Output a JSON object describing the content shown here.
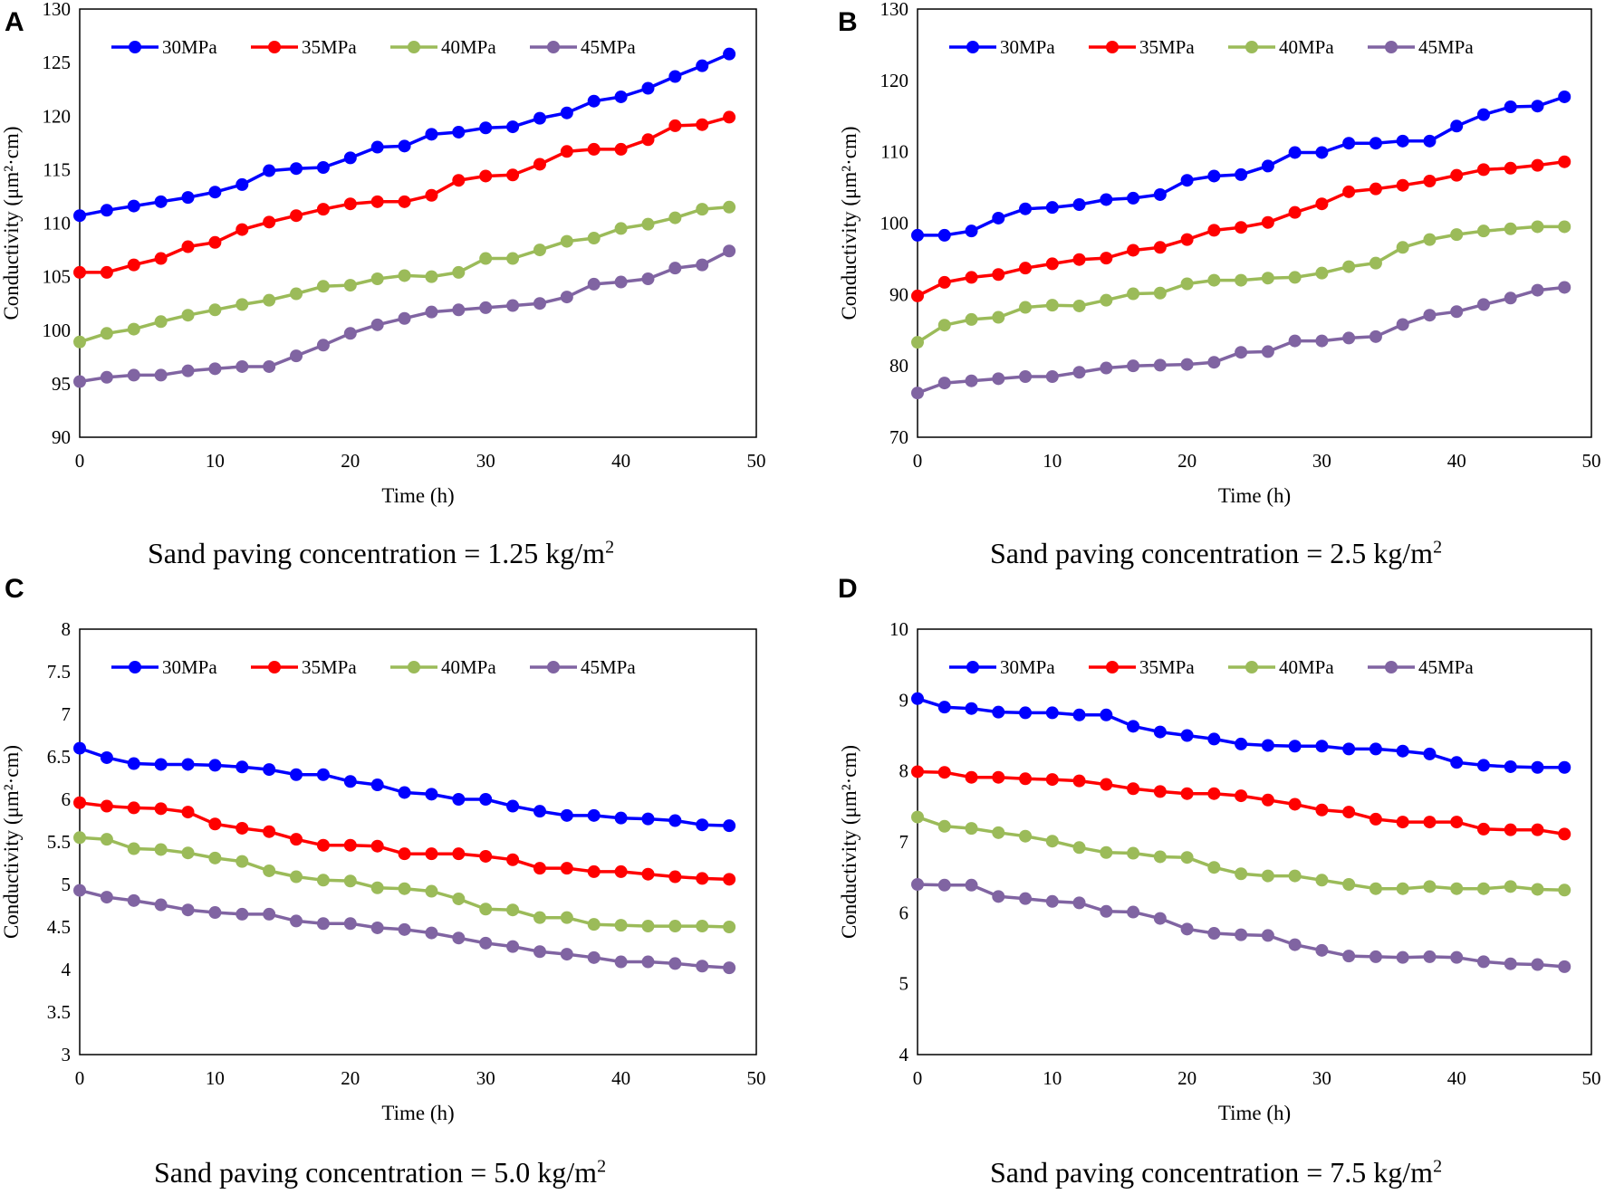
{
  "figure": {
    "panels": [
      {
        "letter": "A",
        "caption": "Sand paving concentration = 1.25 kg/m",
        "caption_sup": "2"
      },
      {
        "letter": "B",
        "caption": "Sand paving concentration = 2.5 kg/m",
        "caption_sup": "2"
      },
      {
        "letter": "C",
        "caption": "Sand paving concentration = 5.0 kg/m",
        "caption_sup": "2"
      },
      {
        "letter": "D",
        "caption": "Sand paving concentration = 7.5 kg/m",
        "caption_sup": "2"
      }
    ]
  },
  "chart_data": [
    {
      "type": "line",
      "panel": "A",
      "title": "",
      "xlabel": "Time (h)",
      "ylabel": "Conductivity (μm²·cm)",
      "xlim": [
        0,
        50
      ],
      "ylim": [
        90,
        130
      ],
      "xticks": [
        0,
        10,
        20,
        30,
        40,
        50
      ],
      "yticks": [
        90,
        95,
        100,
        105,
        110,
        115,
        120,
        125,
        130
      ],
      "grid": false,
      "legend": "top-left",
      "x": [
        0,
        2,
        4,
        6,
        8,
        10,
        12,
        14,
        16,
        18,
        20,
        22,
        24,
        26,
        28,
        30,
        32,
        34,
        36,
        38,
        40,
        42,
        44,
        46,
        48
      ],
      "series": [
        {
          "name": "30MPa",
          "color": "#0000FF",
          "values": [
            110.7,
            111.2,
            111.6,
            112.0,
            112.4,
            112.9,
            113.6,
            114.9,
            115.1,
            115.2,
            116.1,
            117.1,
            117.2,
            118.3,
            118.5,
            118.9,
            119.0,
            119.8,
            120.3,
            121.4,
            121.8,
            122.6,
            123.7,
            124.7,
            125.8
          ]
        },
        {
          "name": "35MPa",
          "color": "#FF0000",
          "values": [
            105.4,
            105.4,
            106.1,
            106.7,
            107.8,
            108.2,
            109.4,
            110.1,
            110.7,
            111.3,
            111.8,
            112.0,
            112.0,
            112.6,
            114.0,
            114.4,
            114.5,
            115.5,
            116.7,
            116.9,
            116.9,
            117.8,
            119.1,
            119.2,
            119.9
          ]
        },
        {
          "name": "40MPa",
          "color": "#9BBB59",
          "values": [
            98.9,
            99.7,
            100.1,
            100.8,
            101.4,
            101.9,
            102.4,
            102.8,
            103.4,
            104.1,
            104.2,
            104.8,
            105.1,
            105.0,
            105.4,
            106.7,
            106.7,
            107.5,
            108.3,
            108.6,
            109.5,
            109.9,
            110.5,
            111.3,
            111.5
          ]
        },
        {
          "name": "45MPa",
          "color": "#8064A2",
          "values": [
            95.2,
            95.6,
            95.8,
            95.8,
            96.2,
            96.4,
            96.6,
            96.6,
            97.6,
            98.6,
            99.7,
            100.5,
            101.1,
            101.7,
            101.9,
            102.1,
            102.3,
            102.5,
            103.1,
            104.3,
            104.5,
            104.8,
            105.8,
            106.1,
            107.4
          ]
        }
      ]
    },
    {
      "type": "line",
      "panel": "B",
      "title": "",
      "xlabel": "Time (h)",
      "ylabel": "Conductivity (μm²·cm)",
      "xlim": [
        0,
        50
      ],
      "ylim": [
        70,
        130
      ],
      "xticks": [
        0,
        10,
        20,
        30,
        40,
        50
      ],
      "yticks": [
        70,
        80,
        90,
        100,
        110,
        120,
        130
      ],
      "grid": false,
      "legend": "top-left",
      "x": [
        0,
        2,
        4,
        6,
        8,
        10,
        12,
        14,
        16,
        18,
        20,
        22,
        24,
        26,
        28,
        30,
        32,
        34,
        36,
        38,
        40,
        42,
        44,
        46,
        48
      ],
      "series": [
        {
          "name": "30MPa",
          "color": "#0000FF",
          "values": [
            98.3,
            98.3,
            98.9,
            100.7,
            102.0,
            102.2,
            102.6,
            103.3,
            103.5,
            104.0,
            106.0,
            106.6,
            106.8,
            108.0,
            109.9,
            109.9,
            111.2,
            111.2,
            111.5,
            111.5,
            113.6,
            115.2,
            116.3,
            116.4,
            117.7
          ]
        },
        {
          "name": "35MPa",
          "color": "#FF0000",
          "values": [
            89.8,
            91.7,
            92.4,
            92.8,
            93.7,
            94.3,
            94.9,
            95.1,
            96.2,
            96.6,
            97.7,
            99.0,
            99.4,
            100.1,
            101.5,
            102.7,
            104.4,
            104.8,
            105.3,
            105.9,
            106.7,
            107.5,
            107.7,
            108.1,
            108.6
          ]
        },
        {
          "name": "40MPa",
          "color": "#9BBB59",
          "values": [
            83.3,
            85.7,
            86.5,
            86.8,
            88.2,
            88.5,
            88.4,
            89.2,
            90.1,
            90.2,
            91.5,
            92.0,
            92.0,
            92.3,
            92.4,
            93.0,
            93.9,
            94.4,
            96.6,
            97.7,
            98.4,
            98.9,
            99.2,
            99.5,
            99.5
          ]
        },
        {
          "name": "45MPa",
          "color": "#8064A2",
          "values": [
            76.2,
            77.6,
            77.9,
            78.2,
            78.5,
            78.5,
            79.1,
            79.7,
            80.0,
            80.1,
            80.2,
            80.5,
            81.9,
            82.0,
            83.5,
            83.5,
            83.9,
            84.1,
            85.8,
            87.1,
            87.6,
            88.6,
            89.5,
            90.6,
            91.0
          ]
        }
      ]
    },
    {
      "type": "line",
      "panel": "C",
      "title": "",
      "xlabel": "Time (h)",
      "ylabel": "Conductivity (μm²·cm)",
      "xlim": [
        0,
        50
      ],
      "ylim": [
        3,
        8
      ],
      "xticks": [
        0,
        10,
        20,
        30,
        40,
        50
      ],
      "yticks": [
        3,
        3.5,
        4,
        4.5,
        5,
        5.5,
        6,
        6.5,
        7,
        7.5,
        8
      ],
      "grid": false,
      "legend": "top-left",
      "x": [
        0,
        2,
        4,
        6,
        8,
        10,
        12,
        14,
        16,
        18,
        20,
        22,
        24,
        26,
        28,
        30,
        32,
        34,
        36,
        38,
        40,
        42,
        44,
        46,
        48
      ],
      "series": [
        {
          "name": "30MPa",
          "color": "#0000FF",
          "values": [
            6.6,
            6.49,
            6.42,
            6.41,
            6.41,
            6.4,
            6.38,
            6.35,
            6.29,
            6.29,
            6.21,
            6.17,
            6.08,
            6.06,
            6.0,
            6.0,
            5.92,
            5.86,
            5.81,
            5.81,
            5.78,
            5.77,
            5.75,
            5.7,
            5.69
          ]
        },
        {
          "name": "35MPa",
          "color": "#FF0000",
          "values": [
            5.96,
            5.92,
            5.9,
            5.89,
            5.85,
            5.71,
            5.66,
            5.62,
            5.53,
            5.46,
            5.46,
            5.45,
            5.36,
            5.36,
            5.36,
            5.33,
            5.29,
            5.19,
            5.19,
            5.15,
            5.15,
            5.12,
            5.09,
            5.07,
            5.06
          ]
        },
        {
          "name": "40MPa",
          "color": "#9BBB59",
          "values": [
            5.55,
            5.53,
            5.42,
            5.41,
            5.37,
            5.31,
            5.27,
            5.16,
            5.09,
            5.05,
            5.04,
            4.96,
            4.95,
            4.92,
            4.83,
            4.71,
            4.7,
            4.61,
            4.61,
            4.53,
            4.52,
            4.51,
            4.51,
            4.51,
            4.5
          ]
        },
        {
          "name": "45MPa",
          "color": "#8064A2",
          "values": [
            4.93,
            4.85,
            4.81,
            4.76,
            4.7,
            4.67,
            4.65,
            4.65,
            4.57,
            4.54,
            4.54,
            4.49,
            4.47,
            4.43,
            4.37,
            4.31,
            4.27,
            4.21,
            4.18,
            4.14,
            4.09,
            4.09,
            4.07,
            4.04,
            4.02
          ]
        }
      ]
    },
    {
      "type": "line",
      "panel": "D",
      "title": "",
      "xlabel": "Time (h)",
      "ylabel": "Conductivity (μm²·cm)",
      "xlim": [
        0,
        50
      ],
      "ylim": [
        4,
        10
      ],
      "xticks": [
        0,
        10,
        20,
        30,
        40,
        50
      ],
      "yticks": [
        4,
        5,
        6,
        7,
        8,
        9,
        10
      ],
      "grid": false,
      "legend": "top-left",
      "x": [
        0,
        2,
        4,
        6,
        8,
        10,
        12,
        14,
        16,
        18,
        20,
        22,
        24,
        26,
        28,
        30,
        32,
        34,
        36,
        38,
        40,
        42,
        44,
        46,
        48
      ],
      "series": [
        {
          "name": "30MPa",
          "color": "#0000FF",
          "values": [
            9.02,
            8.9,
            8.88,
            8.83,
            8.82,
            8.82,
            8.79,
            8.79,
            8.63,
            8.55,
            8.5,
            8.45,
            8.38,
            8.36,
            8.35,
            8.35,
            8.31,
            8.31,
            8.28,
            8.24,
            8.12,
            8.08,
            8.06,
            8.05,
            8.05
          ]
        },
        {
          "name": "35MPa",
          "color": "#FF0000",
          "values": [
            7.99,
            7.98,
            7.91,
            7.91,
            7.89,
            7.88,
            7.86,
            7.81,
            7.75,
            7.71,
            7.68,
            7.68,
            7.65,
            7.59,
            7.53,
            7.45,
            7.42,
            7.32,
            7.28,
            7.28,
            7.28,
            7.18,
            7.17,
            7.17,
            7.11
          ]
        },
        {
          "name": "40MPa",
          "color": "#9BBB59",
          "values": [
            7.35,
            7.22,
            7.19,
            7.13,
            7.08,
            7.01,
            6.92,
            6.85,
            6.84,
            6.79,
            6.78,
            6.64,
            6.55,
            6.52,
            6.52,
            6.46,
            6.4,
            6.34,
            6.34,
            6.37,
            6.34,
            6.34,
            6.37,
            6.33,
            6.32
          ]
        },
        {
          "name": "45MPa",
          "color": "#8064A2",
          "values": [
            6.4,
            6.39,
            6.39,
            6.23,
            6.2,
            6.16,
            6.14,
            6.02,
            6.01,
            5.92,
            5.77,
            5.71,
            5.69,
            5.68,
            5.55,
            5.47,
            5.39,
            5.38,
            5.37,
            5.38,
            5.37,
            5.31,
            5.28,
            5.27,
            5.24
          ]
        }
      ]
    }
  ]
}
